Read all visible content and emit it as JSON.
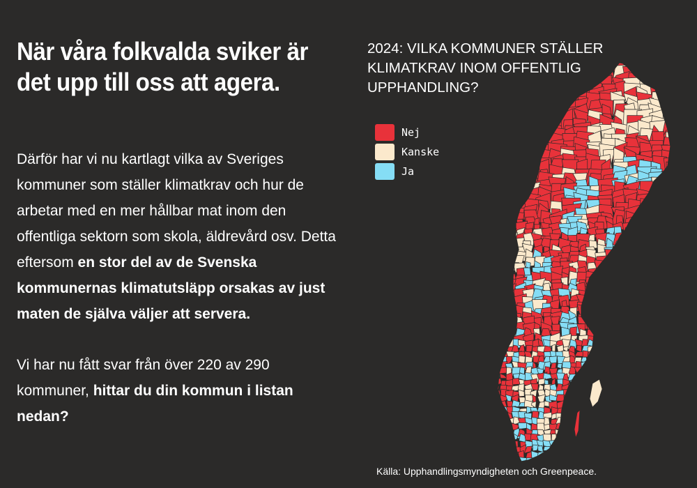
{
  "headline": "När våra folkvalda sviker är det upp till oss att agera.",
  "body": {
    "p1_text": "Därför har vi nu kartlagt vilka av Sveriges kommuner som ställer klimatkrav och hur de arbetar med en mer hållbar mat inom den offentliga sektorn som skola, äldrevård osv. Detta eftersom ",
    "p1_bold": "en stor del av de Svenska kommunernas klimatutsläpp orsakas av just maten de själva väljer att servera.",
    "p2_text": "Vi har nu fått svar från över 220 av 290 kommuner, ",
    "p2_bold": "hittar du din kommun i listan nedan?"
  },
  "map": {
    "title": "2024: VILKA KOMMUNER STÄLLER KLIMATKRAV INOM OFFENTLIG UPPHANDLING?",
    "legend": [
      {
        "label": "Nej",
        "color": "#e8323a"
      },
      {
        "label": "Kanske",
        "color": "#fbe9cc"
      },
      {
        "label": "Ja",
        "color": "#85ddf5"
      }
    ],
    "border_color": "#2b2a29"
  },
  "source": "Källa: Upphandlingsmyndigheten och Greenpeace."
}
